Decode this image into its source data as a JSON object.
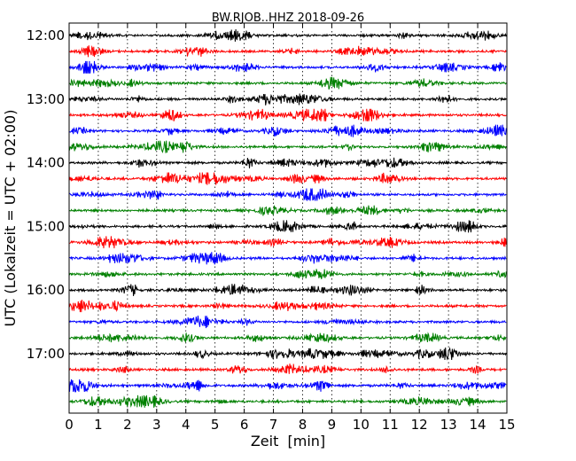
{
  "chart_data": {
    "type": "line",
    "title": "BW.RJOB..HHZ 2018-09-26",
    "xlabel": "Zeit  [min]",
    "ylabel": "UTC (Lokalzeit = UTC + 02:00)",
    "xlim": [
      0,
      15
    ],
    "xticks": [
      "0",
      "1",
      "2",
      "3",
      "4",
      "5",
      "6",
      "7",
      "8",
      "9",
      "10",
      "11",
      "12",
      "13",
      "14",
      "15"
    ],
    "row_minutes": 15,
    "rows_start": "12:00",
    "row_count": 24,
    "yticks": [
      "12:00",
      "13:00",
      "14:00",
      "15:00",
      "16:00",
      "17:00"
    ],
    "grid": "vertical dotted",
    "colors": [
      "#000000",
      "#ff0000",
      "#0000ff",
      "#008000"
    ]
  }
}
